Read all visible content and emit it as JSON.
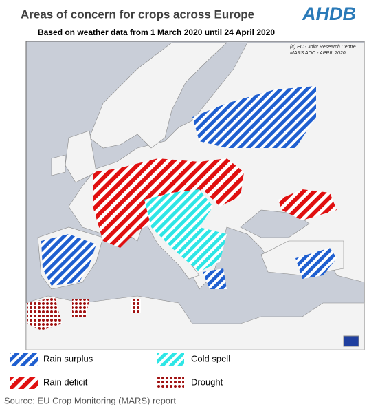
{
  "header": {
    "title": "Areas of concern for crops across Europe",
    "subtitle": "Based on weather data from 1 March 2020 until 24 April 2020",
    "logo": "AHDB"
  },
  "map": {
    "credit": [
      "(c) EC - Joint Research Centre",
      "MARS AOC - APRIL 2020"
    ]
  },
  "legend": [
    {
      "label": "Rain surplus"
    },
    {
      "label": "Cold spell"
    },
    {
      "label": "Rain deficit"
    },
    {
      "label": "Drought"
    }
  ],
  "source": "Source: EU Crop Monitoring (MARS) report"
}
